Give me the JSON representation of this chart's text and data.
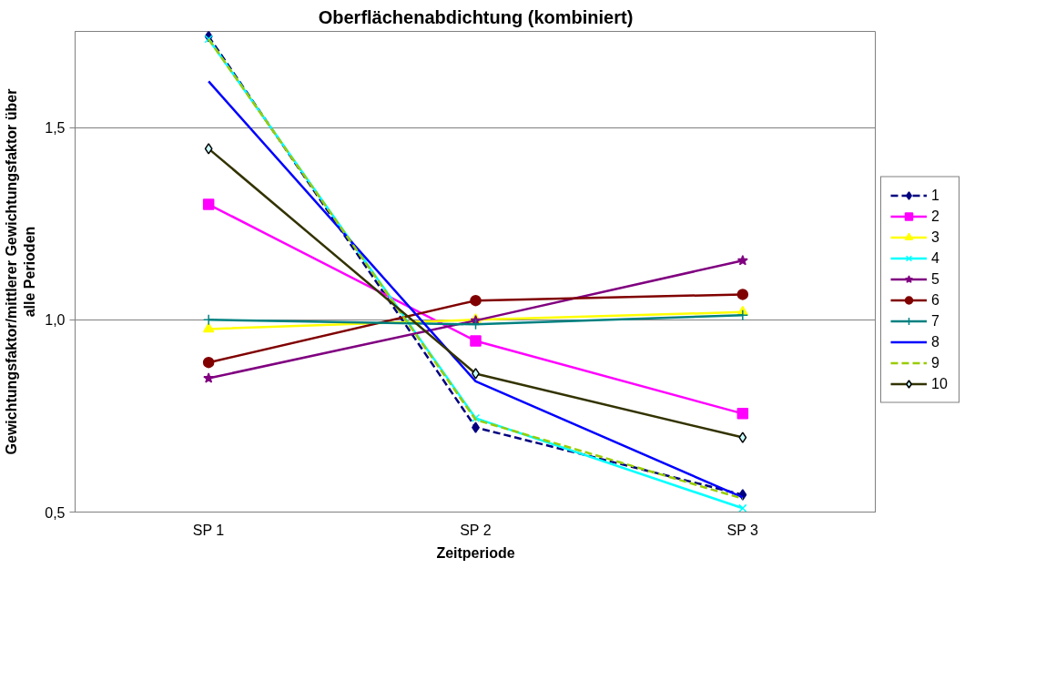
{
  "chart_data": {
    "type": "line",
    "title": "Oberflächenabdichtung (kombiniert)",
    "xlabel": "Zeitperiode",
    "ylabel": "Gewichtungsfaktor/mittlerer Gewichtungsfaktor über\nalle Perioden",
    "categories": [
      "SP 1",
      "SP 2",
      "SP 3"
    ],
    "ylim": [
      0.5,
      1.75
    ],
    "yticks": [
      {
        "value": 0.5,
        "label": "0,5"
      },
      {
        "value": 1.0,
        "label": "1,0"
      },
      {
        "value": 1.5,
        "label": "1,5"
      }
    ],
    "grid": "y",
    "legend": "right",
    "series": [
      {
        "name": "1",
        "color": "#000080",
        "values": [
          1.737,
          0.72,
          0.545
        ],
        "marker": "diamond",
        "line_style": "dashed"
      },
      {
        "name": "2",
        "color": "#ff00ff",
        "values": [
          1.3,
          0.945,
          0.756
        ],
        "marker": "square",
        "line_style": "solid"
      },
      {
        "name": "3",
        "color": "#ffff00",
        "values": [
          0.976,
          1.0,
          1.02
        ],
        "marker": "triangle",
        "line_style": "solid"
      },
      {
        "name": "4",
        "color": "#00ffff",
        "values": [
          1.73,
          0.744,
          0.51
        ],
        "marker": "x",
        "line_style": "solid"
      },
      {
        "name": "5",
        "color": "#800080",
        "values": [
          0.848,
          0.998,
          1.154
        ],
        "marker": "star",
        "line_style": "solid"
      },
      {
        "name": "6",
        "color": "#800000",
        "values": [
          0.889,
          1.05,
          1.066
        ],
        "marker": "circle",
        "line_style": "solid"
      },
      {
        "name": "7",
        "color": "#008080",
        "values": [
          1.0,
          0.988,
          1.012
        ],
        "marker": "cross",
        "line_style": "solid"
      },
      {
        "name": "8",
        "color": "#0000ff",
        "values": [
          1.62,
          0.84,
          0.538
        ],
        "marker": "none",
        "line_style": "solid"
      },
      {
        "name": "9",
        "color": "#99cc00",
        "values": [
          1.73,
          0.74,
          0.535
        ],
        "marker": "none",
        "line_style": "dashed"
      },
      {
        "name": "10",
        "color": "#333300",
        "values": [
          1.445,
          0.86,
          0.694
        ],
        "marker": "diamond",
        "line_style": "solid"
      }
    ]
  }
}
